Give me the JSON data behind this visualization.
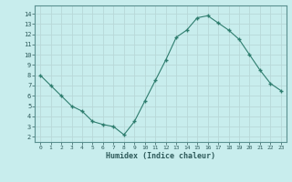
{
  "x": [
    0,
    1,
    2,
    3,
    4,
    5,
    6,
    7,
    8,
    9,
    10,
    11,
    12,
    13,
    14,
    15,
    16,
    17,
    18,
    19,
    20,
    21,
    22,
    23
  ],
  "y": [
    8.0,
    7.0,
    6.0,
    5.0,
    4.5,
    3.5,
    3.2,
    3.0,
    2.2,
    3.5,
    5.5,
    7.5,
    9.5,
    11.7,
    12.4,
    13.6,
    13.8,
    13.1,
    12.4,
    11.5,
    10.0,
    8.5,
    7.2,
    6.5
  ],
  "xlabel": "Humidex (Indice chaleur)",
  "ylim": [
    1.5,
    14.8
  ],
  "xlim": [
    -0.5,
    23.5
  ],
  "yticks": [
    2,
    3,
    4,
    5,
    6,
    7,
    8,
    9,
    10,
    11,
    12,
    13,
    14
  ],
  "xticks": [
    0,
    1,
    2,
    3,
    4,
    5,
    6,
    7,
    8,
    9,
    10,
    11,
    12,
    13,
    14,
    15,
    16,
    17,
    18,
    19,
    20,
    21,
    22,
    23
  ],
  "line_color": "#2e7d6e",
  "marker_color": "#2e7d6e",
  "bg_color": "#c8eded",
  "grid_color": "#b8d8d8",
  "tick_label_color": "#2e5a5a",
  "xlabel_color": "#2e5a5a",
  "spine_color": "#5a9090"
}
